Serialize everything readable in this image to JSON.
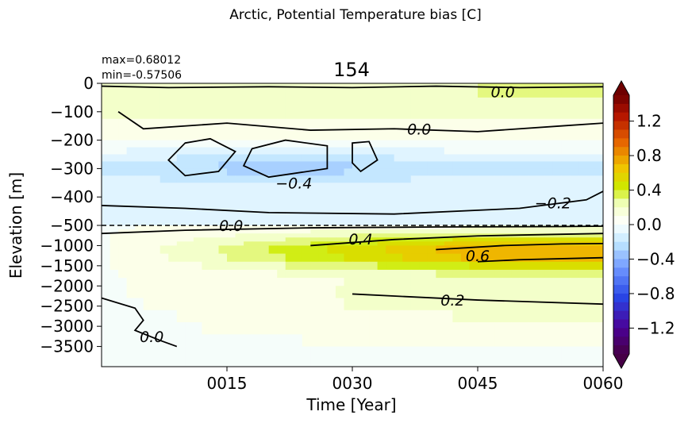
{
  "suptitle": "Arctic, Potential Temperature bias [C]",
  "title": "154",
  "stats": {
    "max": "max=0.68012",
    "min": "min=-0.57506"
  },
  "chart_data": {
    "type": "heatmap",
    "xlabel": "Time [Year]",
    "ylabel": "Elevation [m]",
    "x_ticks": [
      "0015",
      "0030",
      "0045",
      "0060"
    ],
    "x_tick_values": [
      15,
      30,
      45,
      60
    ],
    "xlim": [
      0,
      60
    ],
    "y_ticks_upper": [
      "0",
      "−100",
      "−200",
      "−300",
      "−400",
      "−500"
    ],
    "y_ticks_lower": [
      "−1000",
      "−1500",
      "−2000",
      "−2500",
      "−3000",
      "−3500"
    ],
    "y_upper_range": [
      0,
      -500
    ],
    "y_lower_range": [
      -500,
      -4000
    ],
    "split_depth": -500,
    "split_line": "dashed",
    "colorbar": {
      "vmin": -1.5,
      "vmax": 1.5,
      "ticks": [
        "1.2",
        "0.8",
        "0.4",
        "0.0",
        "−0.4",
        "−0.8",
        "−1.2"
      ],
      "tick_values": [
        1.2,
        0.8,
        0.4,
        0.0,
        -0.4,
        -0.8,
        -1.2
      ],
      "extend": "both"
    },
    "contour_labels": [
      {
        "text": "−0.4",
        "year": 23,
        "depth": -350
      },
      {
        "text": "0.0",
        "year": 48,
        "depth": -30
      },
      {
        "text": "0.0",
        "year": 38,
        "depth": -160
      },
      {
        "text": "−0.2",
        "year": 54,
        "depth": -420
      },
      {
        "text": "0.0",
        "year": 15.5,
        "depth": -500
      },
      {
        "text": "0.4",
        "year": 31,
        "depth": -830
      },
      {
        "text": "0.6",
        "year": 45,
        "depth": -1250
      },
      {
        "text": "0.2",
        "year": 42,
        "depth": -2350
      },
      {
        "text": "0.0",
        "year": 6,
        "depth": -3250
      }
    ]
  }
}
